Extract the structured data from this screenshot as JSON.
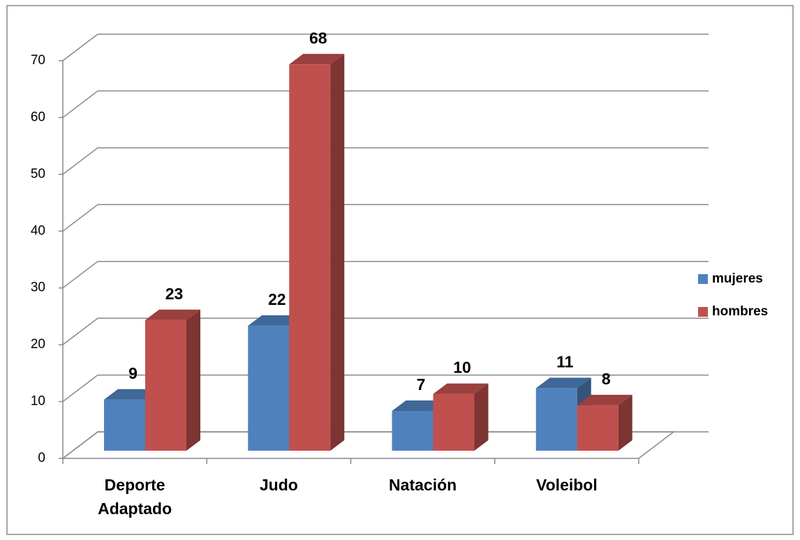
{
  "chart_data": {
    "type": "bar3d",
    "categories": [
      "Deporte Adaptado",
      "Judo",
      "Natación",
      "Voleibol"
    ],
    "series": [
      {
        "name": "mujeres",
        "color": "#4f81bd",
        "values": [
          9,
          22,
          7,
          11
        ]
      },
      {
        "name": "hombres",
        "color": "#c0504d",
        "values": [
          23,
          68,
          10,
          8
        ]
      }
    ],
    "ylim": [
      0,
      70
    ],
    "yticks": [
      0,
      10,
      20,
      30,
      40,
      50,
      60,
      70
    ],
    "grid": true,
    "legend": "right"
  }
}
